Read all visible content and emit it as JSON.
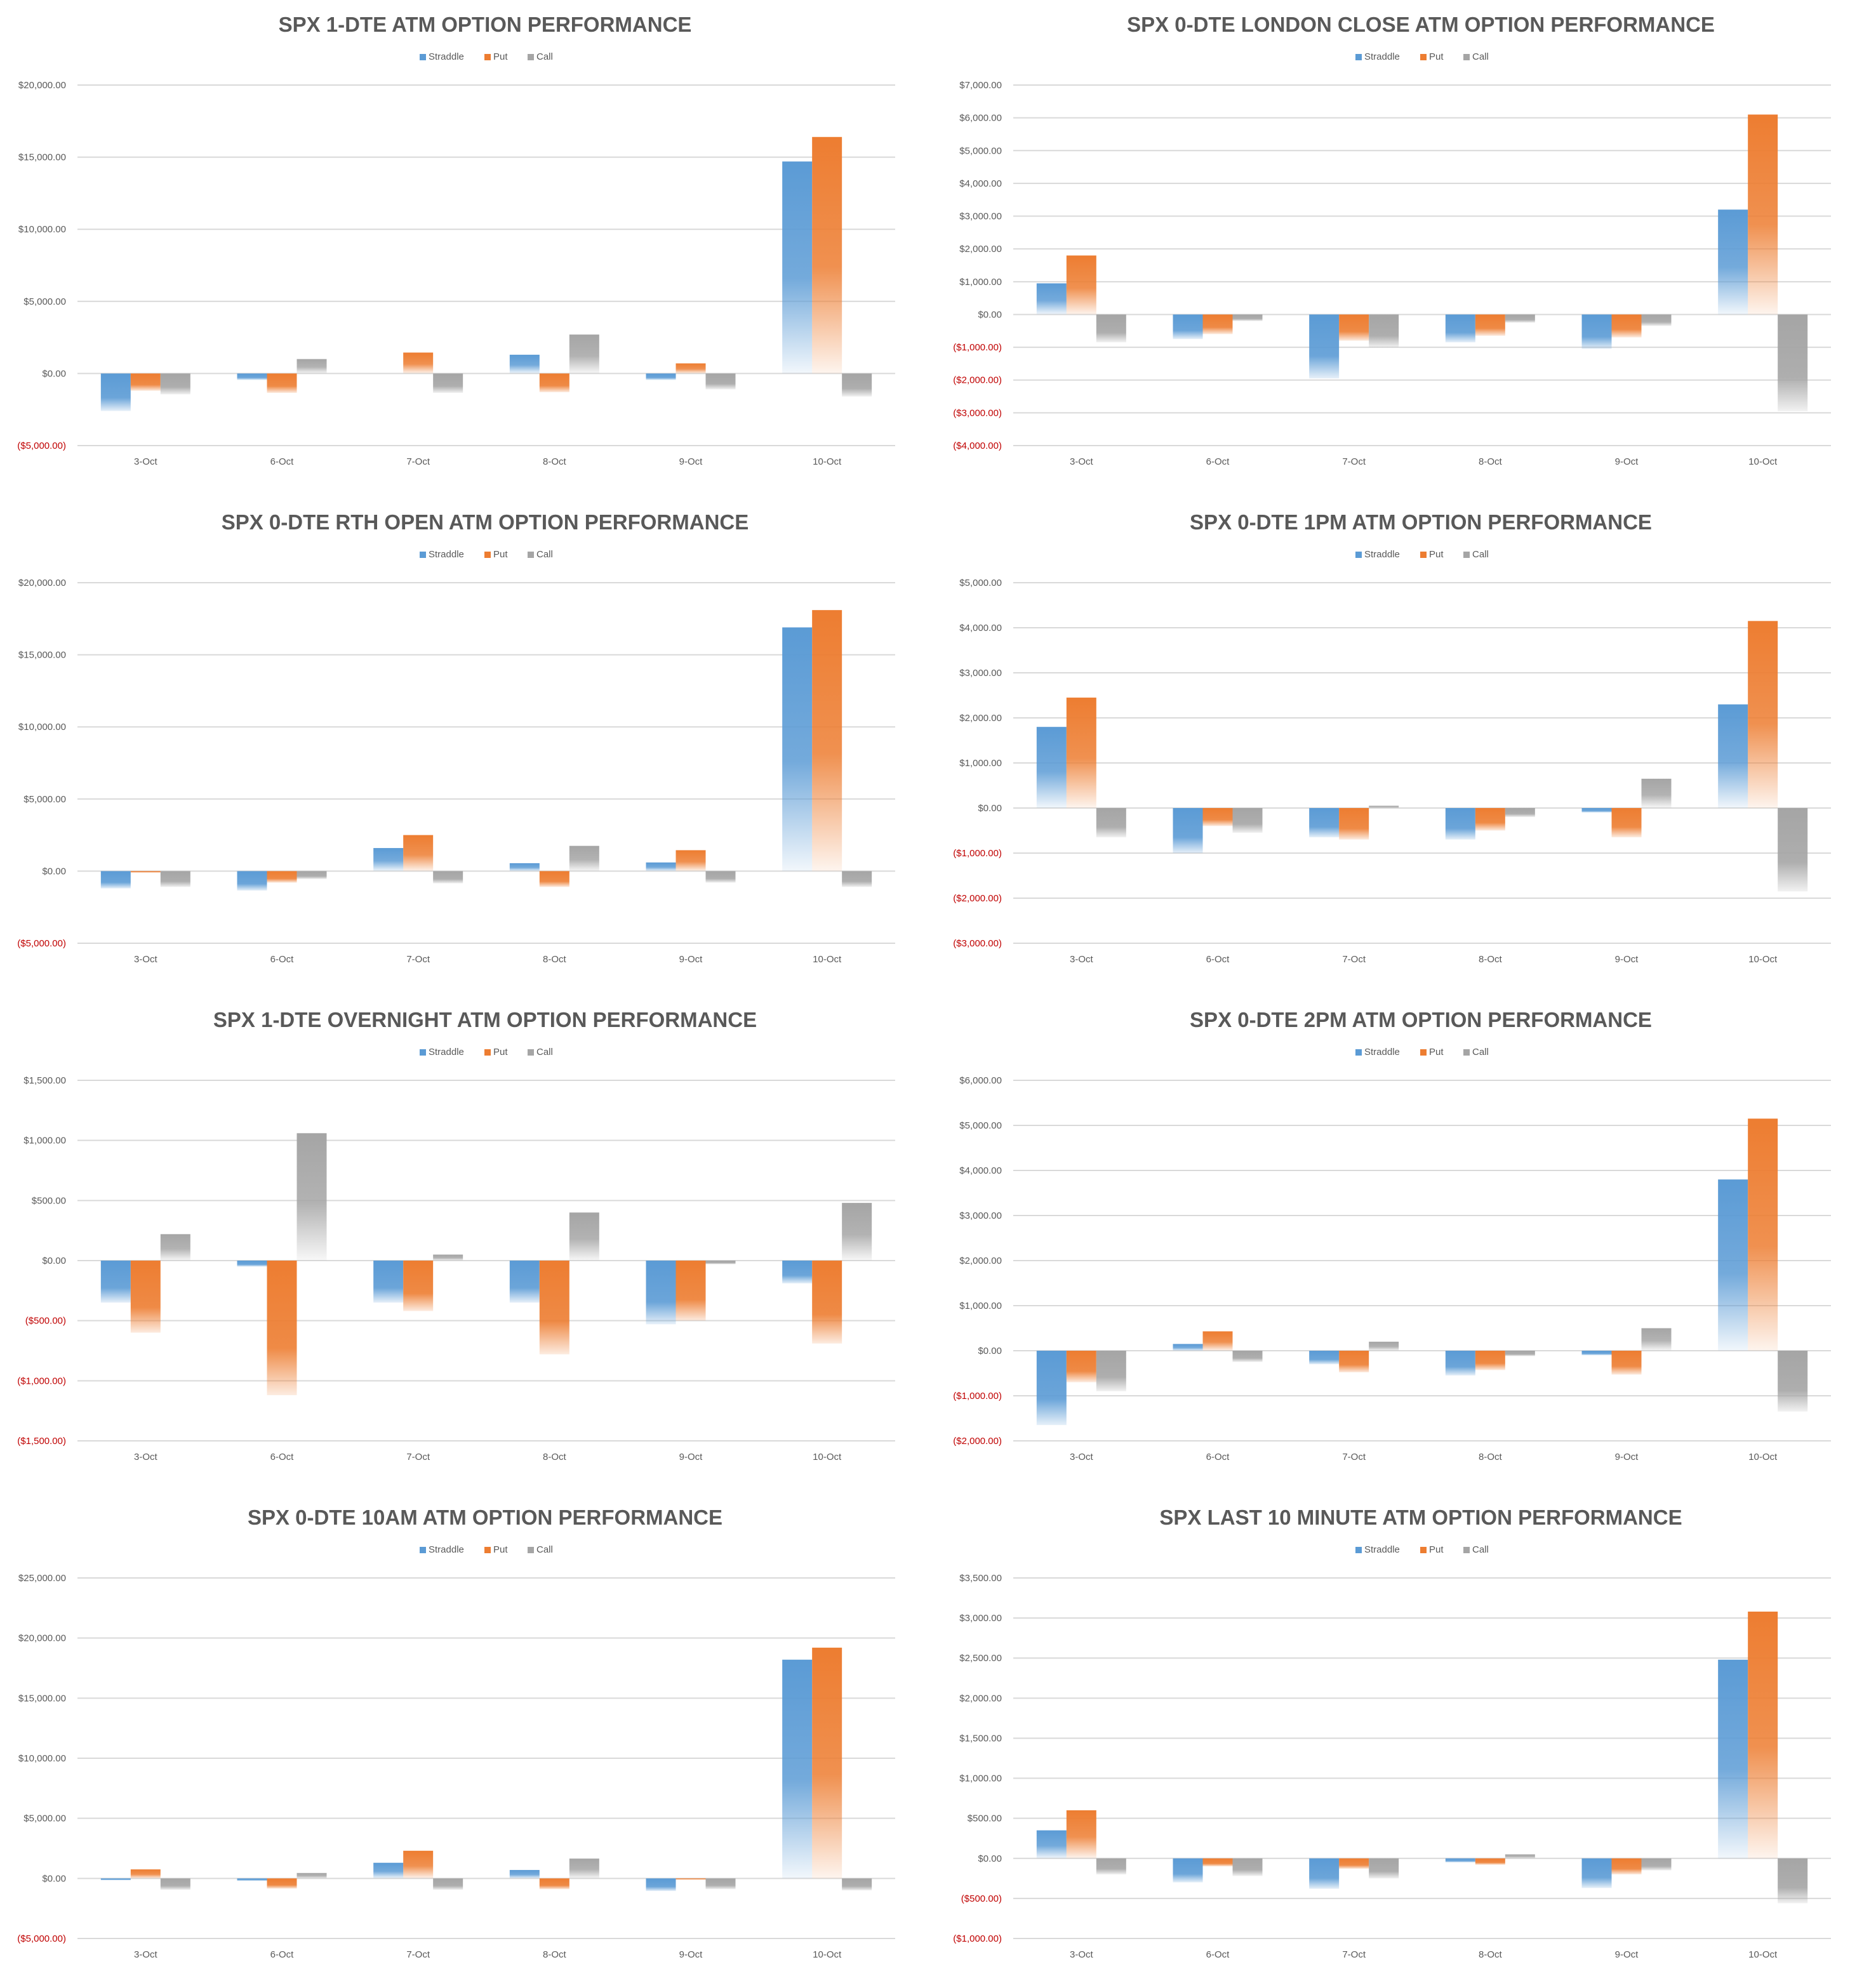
{
  "colors": {
    "Straddle": "#5b9bd5",
    "Put": "#ed7d31",
    "Call": "#a5a5a5"
  },
  "categories": [
    "3-Oct",
    "6-Oct",
    "7-Oct",
    "8-Oct",
    "9-Oct",
    "10-Oct"
  ],
  "legend": [
    "Straddle",
    "Put",
    "Call"
  ],
  "chart_data": [
    {
      "type": "bar",
      "title": "SPX 1-DTE ATM OPTION PERFORMANCE",
      "categories": [
        "3-Oct",
        "6-Oct",
        "7-Oct",
        "8-Oct",
        "9-Oct",
        "10-Oct"
      ],
      "yticks": [
        -5000,
        0,
        5000,
        10000,
        15000,
        20000
      ],
      "ytick_labels": [
        "($5,000.00)",
        "$0.00",
        "$5,000.00",
        "$10,000.00",
        "$15,000.00",
        "$20,000.00"
      ],
      "ylim": [
        -5000,
        20000
      ],
      "series": [
        {
          "name": "Straddle",
          "values": [
            -2600,
            -450,
            0,
            1300,
            -450,
            14700
          ]
        },
        {
          "name": "Put",
          "values": [
            -1200,
            -1350,
            1450,
            -1300,
            700,
            16400
          ]
        },
        {
          "name": "Call",
          "values": [
            -1450,
            1000,
            -1350,
            2700,
            -1100,
            -1600
          ]
        }
      ]
    },
    {
      "type": "bar",
      "title": "SPX 0-DTE  LONDON CLOSE ATM OPTION PERFORMANCE",
      "categories": [
        "3-Oct",
        "6-Oct",
        "7-Oct",
        "8-Oct",
        "9-Oct",
        "10-Oct"
      ],
      "yticks": [
        -4000,
        -3000,
        -2000,
        -1000,
        0,
        1000,
        2000,
        3000,
        4000,
        5000,
        6000,
        7000
      ],
      "ytick_labels": [
        "($4,000.00)",
        "($3,000.00)",
        "($2,000.00)",
        "($1,000.00)",
        "$0.00",
        "$1,000.00",
        "$2,000.00",
        "$3,000.00",
        "$4,000.00",
        "$5,000.00",
        "$6,000.00",
        "$7,000.00"
      ],
      "ylim": [
        -4000,
        7000
      ],
      "series": [
        {
          "name": "Straddle",
          "values": [
            950,
            -750,
            -1950,
            -850,
            -1050,
            3200
          ]
        },
        {
          "name": "Put",
          "values": [
            1800,
            -600,
            -800,
            -650,
            -700,
            6100
          ]
        },
        {
          "name": "Call",
          "values": [
            -850,
            -200,
            -1000,
            -250,
            -350,
            -2950
          ]
        }
      ]
    },
    {
      "type": "bar",
      "title": "SPX 0-DTE RTH OPEN ATM OPTION PERFORMANCE",
      "categories": [
        "3-Oct",
        "6-Oct",
        "7-Oct",
        "8-Oct",
        "9-Oct",
        "10-Oct"
      ],
      "yticks": [
        -5000,
        0,
        5000,
        10000,
        15000,
        20000
      ],
      "ytick_labels": [
        "($5,000.00)",
        "$0.00",
        "$5,000.00",
        "$10,000.00",
        "$15,000.00",
        "$20,000.00"
      ],
      "ylim": [
        -5000,
        20000
      ],
      "series": [
        {
          "name": "Straddle",
          "values": [
            -1200,
            -1350,
            1600,
            550,
            600,
            16900
          ]
        },
        {
          "name": "Put",
          "values": [
            -100,
            -800,
            2500,
            -1100,
            1450,
            18100
          ]
        },
        {
          "name": "Call",
          "values": [
            -1100,
            -550,
            -850,
            1750,
            -800,
            -1100
          ]
        }
      ]
    },
    {
      "type": "bar",
      "title": "SPX 0-DTE 1PM ATM OPTION PERFORMANCE",
      "categories": [
        "3-Oct",
        "6-Oct",
        "7-Oct",
        "8-Oct",
        "9-Oct",
        "10-Oct"
      ],
      "yticks": [
        -3000,
        -2000,
        -1000,
        0,
        1000,
        2000,
        3000,
        4000,
        5000
      ],
      "ytick_labels": [
        "($3,000.00)",
        "($2,000.00)",
        "($1,000.00)",
        "$0.00",
        "$1,000.00",
        "$2,000.00",
        "$3,000.00",
        "$4,000.00",
        "$5,000.00"
      ],
      "ylim": [
        -3000,
        5000
      ],
      "series": [
        {
          "name": "Straddle",
          "values": [
            1800,
            -1000,
            -650,
            -700,
            -100,
            2300
          ]
        },
        {
          "name": "Put",
          "values": [
            2450,
            -400,
            -700,
            -500,
            -650,
            4150
          ]
        },
        {
          "name": "Call",
          "values": [
            -650,
            -550,
            50,
            -200,
            650,
            -1850
          ]
        }
      ]
    },
    {
      "type": "bar",
      "title": "SPX 1-DTE OVERNIGHT ATM OPTION PERFORMANCE",
      "categories": [
        "3-Oct",
        "6-Oct",
        "7-Oct",
        "8-Oct",
        "9-Oct",
        "10-Oct"
      ],
      "yticks": [
        -1500,
        -1000,
        -500,
        0,
        500,
        1000,
        1500
      ],
      "ytick_labels": [
        "($1,500.00)",
        "($1,000.00)",
        "($500.00)",
        "$0.00",
        "$500.00",
        "$1,000.00",
        "$1,500.00"
      ],
      "ylim": [
        -1500,
        1500
      ],
      "series": [
        {
          "name": "Straddle",
          "values": [
            -350,
            -50,
            -350,
            -350,
            -530,
            -190
          ]
        },
        {
          "name": "Put",
          "values": [
            -600,
            -1120,
            -420,
            -780,
            -500,
            -690
          ]
        },
        {
          "name": "Call",
          "values": [
            220,
            1060,
            50,
            400,
            -30,
            480
          ]
        }
      ]
    },
    {
      "type": "bar",
      "title": "SPX 0-DTE 2PM ATM OPTION PERFORMANCE",
      "categories": [
        "3-Oct",
        "6-Oct",
        "7-Oct",
        "8-Oct",
        "9-Oct",
        "10-Oct"
      ],
      "yticks": [
        -2000,
        -1000,
        0,
        1000,
        2000,
        3000,
        4000,
        5000,
        6000
      ],
      "ytick_labels": [
        "($2,000.00)",
        "($1,000.00)",
        "$0.00",
        "$1,000.00",
        "$2,000.00",
        "$3,000.00",
        "$4,000.00",
        "$5,000.00",
        "$6,000.00"
      ],
      "ylim": [
        -2000,
        6000
      ],
      "series": [
        {
          "name": "Straddle",
          "values": [
            -1650,
            150,
            -300,
            -550,
            -100,
            3800
          ]
        },
        {
          "name": "Put",
          "values": [
            -700,
            430,
            -480,
            -430,
            -530,
            5150
          ]
        },
        {
          "name": "Call",
          "values": [
            -900,
            -250,
            200,
            -120,
            500,
            -1350
          ]
        }
      ]
    },
    {
      "type": "bar",
      "title": "SPX 0-DTE 10AM ATM OPTION PERFORMANCE",
      "categories": [
        "3-Oct",
        "6-Oct",
        "7-Oct",
        "8-Oct",
        "9-Oct",
        "10-Oct"
      ],
      "yticks": [
        -5000,
        0,
        5000,
        10000,
        15000,
        20000,
        25000
      ],
      "ytick_labels": [
        "($5,000.00)",
        "$0.00",
        "$5,000.00",
        "$10,000.00",
        "$15,000.00",
        "$20,000.00",
        "$25,000.00"
      ],
      "ylim": [
        -5000,
        25000
      ],
      "series": [
        {
          "name": "Straddle",
          "values": [
            -150,
            -200,
            1300,
            700,
            -1050,
            18200
          ]
        },
        {
          "name": "Put",
          "values": [
            750,
            -850,
            2300,
            -900,
            -100,
            19200
          ]
        },
        {
          "name": "Call",
          "values": [
            -950,
            450,
            -950,
            1650,
            -900,
            -1000
          ]
        }
      ]
    },
    {
      "type": "bar",
      "title": "SPX LAST 10 MINUTE ATM OPTION PERFORMANCE",
      "categories": [
        "3-Oct",
        "6-Oct",
        "7-Oct",
        "8-Oct",
        "9-Oct",
        "10-Oct"
      ],
      "yticks": [
        -1000,
        -500,
        0,
        500,
        1000,
        1500,
        2000,
        2500,
        3000,
        3500
      ],
      "ytick_labels": [
        "($1,000.00)",
        "($500.00)",
        "$0.00",
        "$500.00",
        "$1,000.00",
        "$1,500.00",
        "$2,000.00",
        "$2,500.00",
        "$3,000.00",
        "$3,500.00"
      ],
      "ylim": [
        -1000,
        3500
      ],
      "series": [
        {
          "name": "Straddle",
          "values": [
            350,
            -300,
            -380,
            -50,
            -370,
            2480
          ]
        },
        {
          "name": "Put",
          "values": [
            600,
            -100,
            -130,
            -80,
            -200,
            3080
          ]
        },
        {
          "name": "Call",
          "values": [
            -200,
            -220,
            -250,
            50,
            -150,
            -560
          ]
        }
      ]
    }
  ]
}
